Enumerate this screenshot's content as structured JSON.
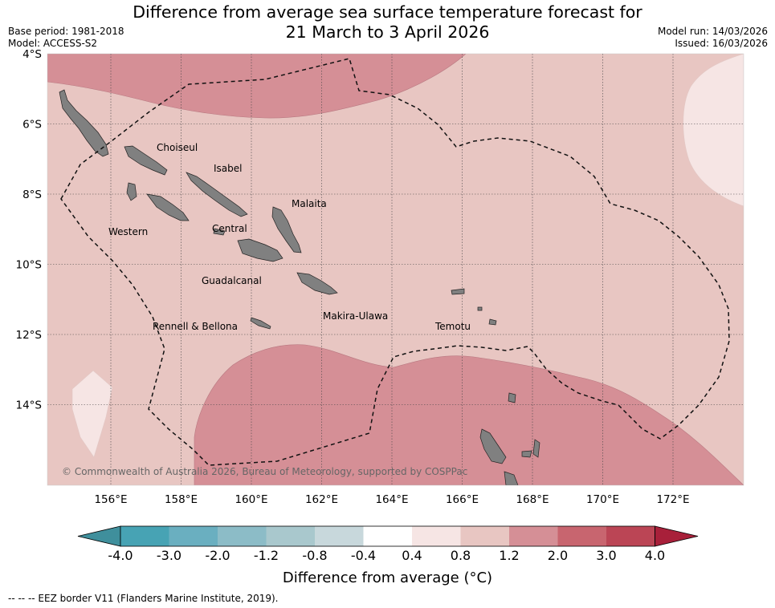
{
  "title_line1": "Difference from average sea surface temperature forecast for",
  "title_line2": "21 March to 3 April 2026",
  "base_period": "Base period: 1981-2018",
  "model": "Model: ACCESS-S2",
  "model_run": "Model run: 14/03/2026",
  "issued": "Issued: 16/03/2026",
  "copyright": "© Commonwealth of Australia 2026, Bureau of Meteorology, supported by COSPPac",
  "lat_labels": [
    "4°S",
    "6°S",
    "8°S",
    "10°S",
    "12°S",
    "14°S"
  ],
  "lon_labels": [
    "156°E",
    "158°E",
    "160°E",
    "162°E",
    "164°E",
    "166°E",
    "168°E",
    "170°E",
    "172°E"
  ],
  "regions": {
    "choiseul": "Choiseul",
    "isabel": "Isabel",
    "malaita": "Malaita",
    "western": "Western",
    "central": "Central",
    "guadalcanal": "Guadalcanal",
    "makira": "Makira-Ulawa",
    "temotu": "Temotu",
    "rennell": "Rennell & Bellona"
  },
  "colorbar": {
    "label": "Difference from average (°C)",
    "ticks": [
      "-4.0",
      "-3.0",
      "-2.0",
      "-1.2",
      "-0.8",
      "-0.4",
      "0.4",
      "0.8",
      "1.2",
      "2.0",
      "3.0",
      "4.0"
    ],
    "colors": [
      "#3f8f9c",
      "#47a3b4",
      "#6aafc0",
      "#8cbcc7",
      "#a9c8cd",
      "#c8d8dc",
      "#ffffff",
      "#f6e5e4",
      "#e8c6c2",
      "#d58f96",
      "#c8656f",
      "#bb4555",
      "#a8203a"
    ]
  },
  "footnote": "--  --  -- EEZ border V11 (Flanders Marine Institute, 2019).",
  "colors": {
    "land": "#808080",
    "anomaly_0_8_1_2": "#e8c6c2",
    "anomaly_1_2_2_0": "#d58f96",
    "anomaly_0_4_0_8": "#f6e5e4"
  }
}
